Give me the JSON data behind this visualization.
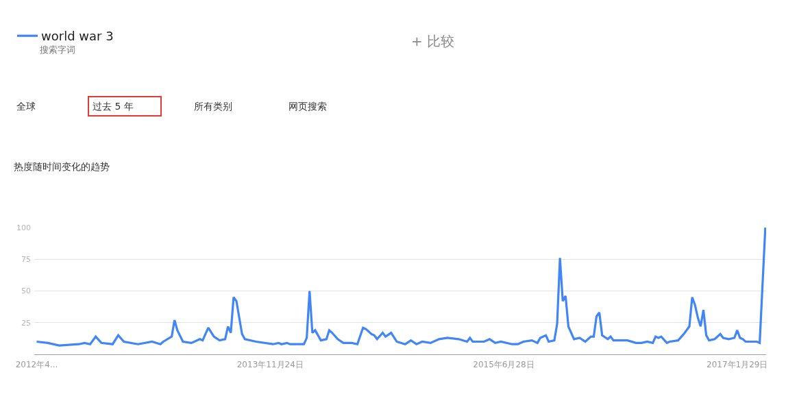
{
  "chart_data": {
    "type": "line",
    "title": "热度随时间变化的趋势",
    "annotations": [
      "搜索字词",
      "+ 比较",
      "全球",
      "过去 5 年",
      "所有类别",
      "网页搜索"
    ],
    "x": [
      "2012-04-22",
      "2012-05-20",
      "2012-06-17",
      "2012-08-05",
      "2012-08-19",
      "2012-09-02",
      "2012-09-16",
      "2012-09-30",
      "2012-10-28",
      "2012-11-11",
      "2012-11-25",
      "2012-12-30",
      "2013-02-03",
      "2013-02-24",
      "2013-03-03",
      "2013-03-24",
      "2013-03-31",
      "2013-04-07",
      "2013-04-21",
      "2013-05-12",
      "2013-06-02",
      "2013-06-09",
      "2013-06-23",
      "2013-07-07",
      "2013-07-21",
      "2013-08-04",
      "2013-08-11",
      "2013-08-18",
      "2013-08-25",
      "2013-09-01",
      "2013-09-15",
      "2013-09-22",
      "2013-10-20",
      "2013-12-01",
      "2013-12-15",
      "2013-12-22",
      "2014-01-05",
      "2014-01-12",
      "2014-02-16",
      "2014-02-23",
      "2014-03-02",
      "2014-03-09",
      "2014-03-16",
      "2014-03-30",
      "2014-04-13",
      "2014-04-20",
      "2014-04-27",
      "2014-05-11",
      "2014-05-25",
      "2014-06-15",
      "2014-06-29",
      "2014-07-13",
      "2014-07-20",
      "2014-08-03",
      "2014-08-10",
      "2014-08-17",
      "2014-08-31",
      "2014-09-07",
      "2014-09-21",
      "2014-10-05",
      "2014-10-26",
      "2014-11-09",
      "2014-11-23",
      "2014-12-07",
      "2014-12-28",
      "2015-01-18",
      "2015-02-08",
      "2015-03-08",
      "2015-03-29",
      "2015-04-05",
      "2015-04-12",
      "2015-05-10",
      "2015-05-24",
      "2015-06-07",
      "2015-06-21",
      "2015-07-19",
      "2015-08-02",
      "2015-08-16",
      "2015-09-06",
      "2015-09-20",
      "2015-09-27",
      "2015-10-11",
      "2015-10-18",
      "2015-11-01",
      "2015-11-08",
      "2015-11-15",
      "2015-11-22",
      "2015-11-29",
      "2015-12-06",
      "2015-12-20",
      "2016-01-03",
      "2016-01-17",
      "2016-01-31",
      "2016-02-07",
      "2016-02-14",
      "2016-02-21",
      "2016-02-28",
      "2016-03-13",
      "2016-03-20",
      "2016-03-27",
      "2016-05-01",
      "2016-05-22",
      "2016-06-05",
      "2016-06-19",
      "2016-07-03",
      "2016-07-10",
      "2016-07-17",
      "2016-07-24",
      "2016-08-07",
      "2016-08-14",
      "2016-09-04",
      "2016-09-18",
      "2016-10-02",
      "2016-10-09",
      "2016-10-16",
      "2016-10-23",
      "2016-10-30",
      "2016-11-06",
      "2016-11-13",
      "2016-11-20",
      "2016-12-04",
      "2016-12-18",
      "2016-12-25",
      "2017-01-08",
      "2017-01-22",
      "2017-01-29",
      "2017-02-05",
      "2017-02-12",
      "2017-02-19",
      "2017-03-19",
      "2017-03-26",
      "2017-04-09"
    ],
    "series": [
      {
        "name": "world war 3",
        "color": "#4285f4",
        "values": [
          10,
          9,
          7,
          8,
          9,
          8,
          14,
          9,
          8,
          15,
          10,
          8,
          10,
          8,
          10,
          14,
          27,
          19,
          10,
          9,
          12,
          11,
          21,
          14,
          11,
          12,
          22,
          17,
          45,
          42,
          16,
          12,
          10,
          8,
          9,
          8,
          9,
          8,
          8,
          13,
          50,
          17,
          19,
          11,
          12,
          19,
          17,
          12,
          9,
          9,
          8,
          21,
          20,
          16,
          15,
          12,
          17,
          14,
          17,
          10,
          8,
          11,
          8,
          10,
          9,
          12,
          13,
          12,
          10,
          13,
          10,
          10,
          12,
          9,
          10,
          8,
          8,
          10,
          11,
          9,
          13,
          15,
          10,
          11,
          24,
          76,
          42,
          46,
          22,
          12,
          13,
          10,
          14,
          14,
          30,
          33,
          15,
          12,
          14,
          11,
          11,
          9,
          9,
          10,
          9,
          14,
          13,
          14,
          9,
          10,
          11,
          16,
          22,
          45,
          39,
          29,
          22,
          35,
          15,
          11,
          12,
          16,
          13,
          12,
          13,
          19,
          13,
          12,
          10,
          10,
          9,
          100
        ]
      }
    ],
    "xlim": [
      "2012-04-16",
      "2017-04-11"
    ],
    "xticks": [
      {
        "value": "2012-04-22",
        "label": "2012年4..."
      },
      {
        "value": "2013-11-24",
        "label": "2013年11月24日"
      },
      {
        "value": "2015-06-28",
        "label": "2015年6月28日"
      },
      {
        "value": "2017-01-29",
        "label": "2017年1月29日"
      }
    ],
    "ylim": [
      0,
      100
    ],
    "yticks": [
      25,
      50,
      75,
      100
    ],
    "grid": "y",
    "legend": "top left",
    "line_style": "solid"
  }
}
